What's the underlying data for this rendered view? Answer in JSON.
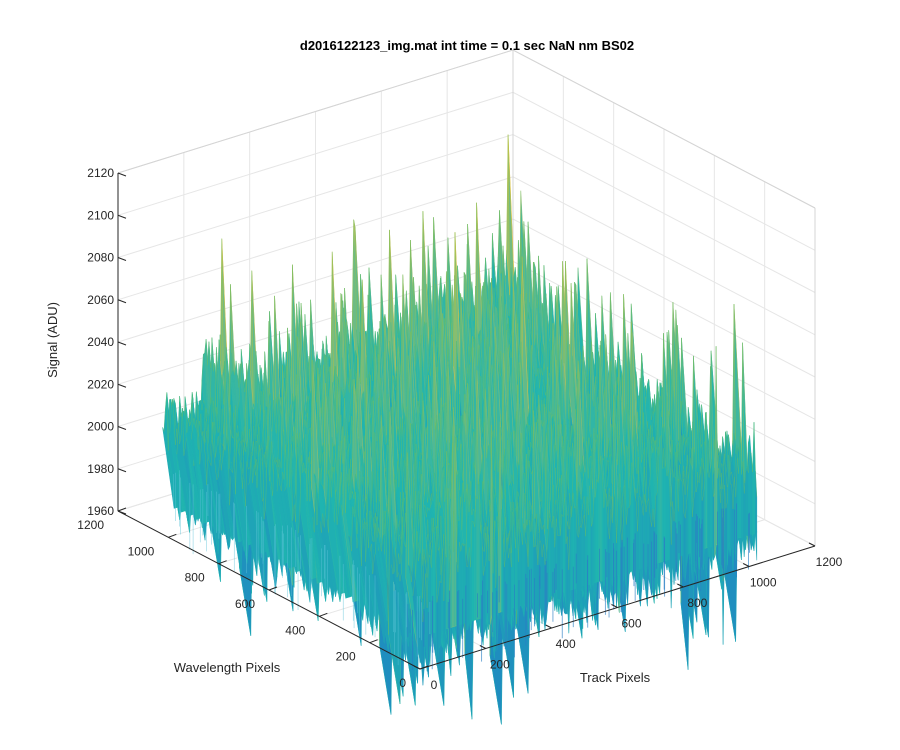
{
  "chart_data": {
    "type": "surface",
    "title": "d2016122123_img.mat int time = 0.1 sec  NaN nm BS02",
    "xlabel": "Track Pixels",
    "ylabel": "Wavelength Pixels",
    "zlabel": "Signal (ADU)",
    "xlim": [
      0,
      1200
    ],
    "ylim": [
      0,
      1200
    ],
    "zlim": [
      1960,
      2120
    ],
    "xticks": [
      "0",
      "200",
      "400",
      "600",
      "800",
      "1000",
      "1200"
    ],
    "yticks": [
      "0",
      "200",
      "400",
      "600",
      "800",
      "1000",
      "1200"
    ],
    "zticks": [
      "1960",
      "1980",
      "2000",
      "2020",
      "2040",
      "2060",
      "2080",
      "2100",
      "2120"
    ],
    "grid": true,
    "colormap": "parula",
    "surface": {
      "x_range": [
        1,
        1024
      ],
      "y_range": [
        1,
        1024
      ],
      "baseline_signal": 2005,
      "noise_peak_to_peak": 120,
      "min_signal": 1950,
      "max_signal": 2110
    },
    "colors": {
      "low": "#1f77c8",
      "mid": "#1fb5b0",
      "high": "#f2c53a"
    }
  }
}
